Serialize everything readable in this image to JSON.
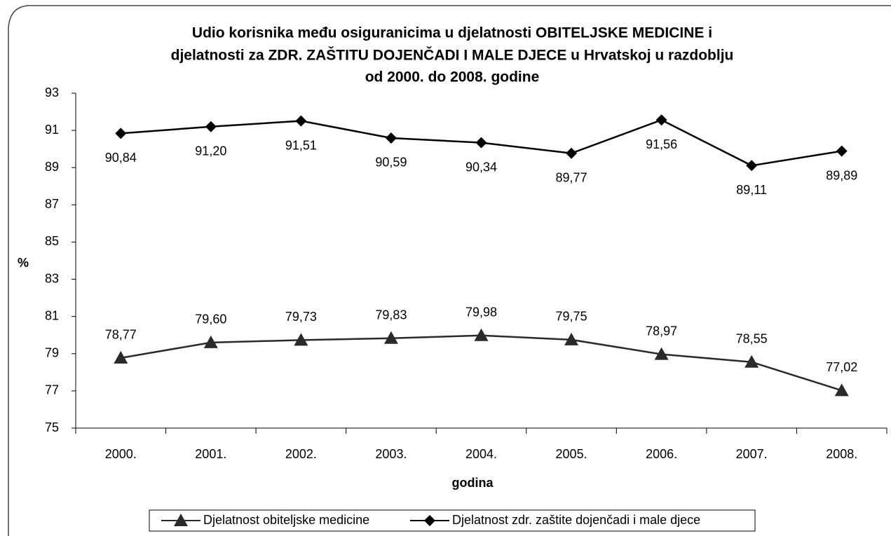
{
  "chart_data": {
    "type": "line",
    "title": [
      "Udio korisnika među osiguranicima u djelatnosti OBITELJSKE MEDICINE i",
      "djelatnosti za ZDR. ZAŠTITU DOJENČADI I MALE DJECE u Hrvatskoj u razdoblju",
      "od 2000. do 2008. godine"
    ],
    "x_label": "godina",
    "y_label": "%",
    "categories": [
      "2000.",
      "2001.",
      "2002.",
      "2003.",
      "2004.",
      "2005.",
      "2006.",
      "2007.",
      "2008."
    ],
    "series": [
      {
        "name": "Djelatnost obiteljske medicine",
        "color": "#2a2a2a",
        "marker": "triangle",
        "label_position": "above",
        "values": [
          78.77,
          79.6,
          79.73,
          79.83,
          79.98,
          79.75,
          78.97,
          78.55,
          77.02
        ],
        "value_labels": [
          "78,77",
          "79,60",
          "79,73",
          "79,83",
          "79,98",
          "79,75",
          "78,97",
          "78,55",
          "77,02"
        ]
      },
      {
        "name": "Djelatnost zdr. zaštite dojenčadi i male djece",
        "color": "#000000",
        "marker": "diamond",
        "label_position": "below",
        "values": [
          90.84,
          91.2,
          91.51,
          90.59,
          90.34,
          89.77,
          91.56,
          89.11,
          89.89
        ],
        "value_labels": [
          "90,84",
          "91,20",
          "91,51",
          "90,59",
          "90,34",
          "89,77",
          "91,56",
          "89,11",
          "89,89"
        ]
      }
    ],
    "ylim": [
      75,
      93
    ],
    "yticks": [
      75,
      77,
      79,
      81,
      83,
      85,
      87,
      89,
      91,
      93
    ],
    "grid": false,
    "legend": "bottom"
  }
}
